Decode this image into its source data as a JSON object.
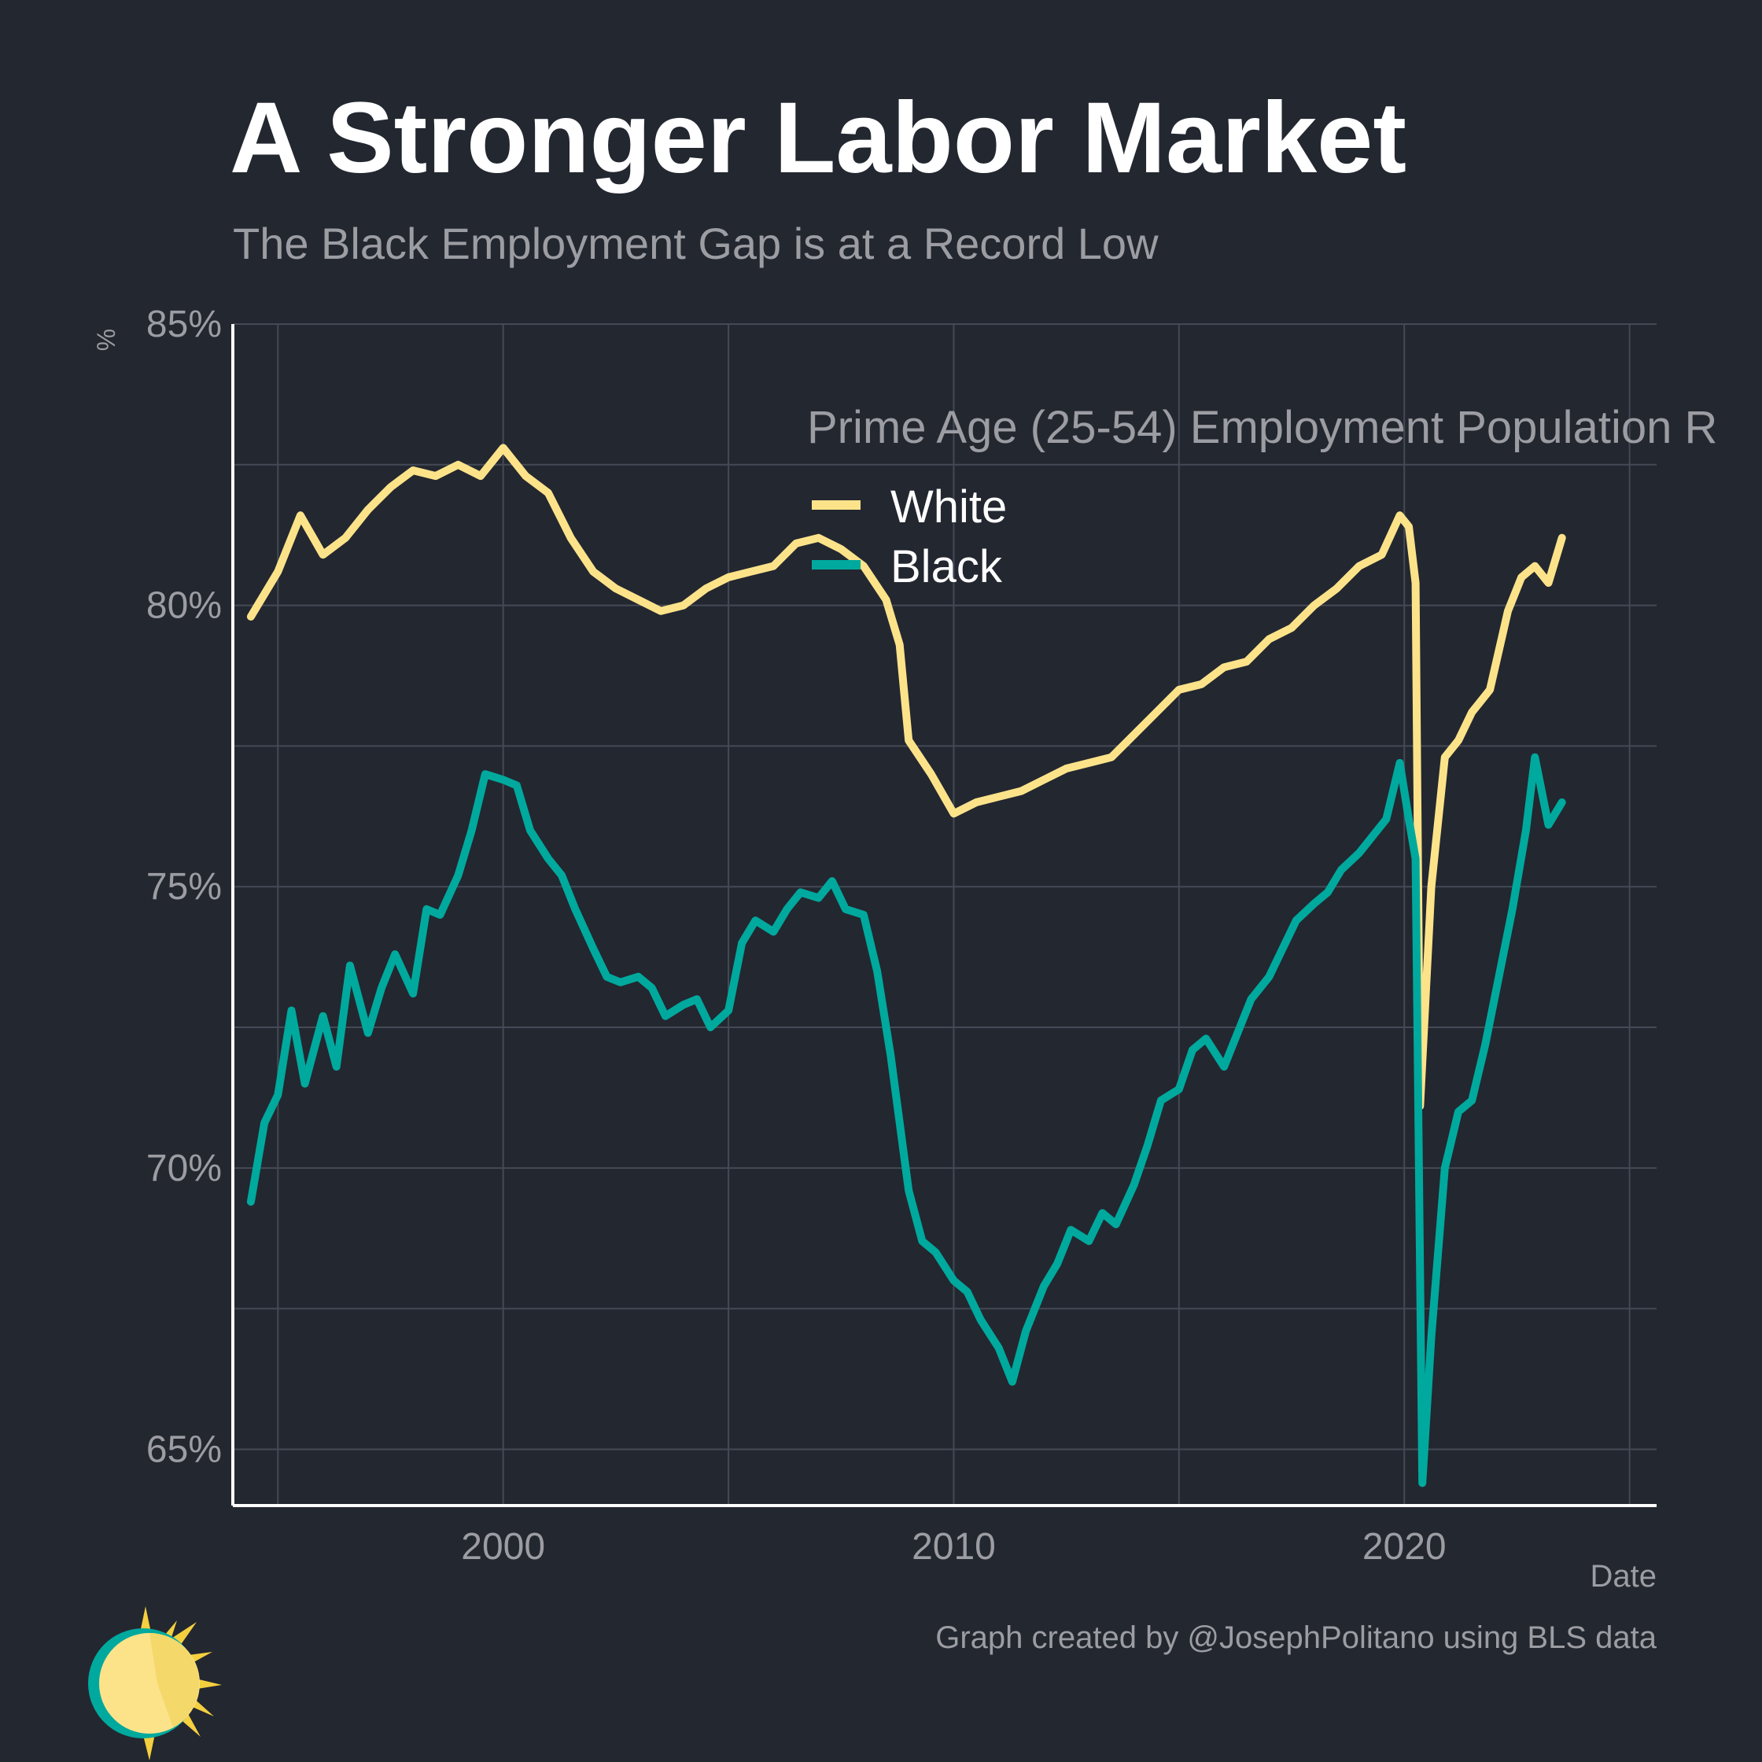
{
  "header": {
    "title": "A Stronger Labor Market",
    "subtitle": "The Black Employment Gap is at a Record Low"
  },
  "footer": {
    "caption": "Graph created by @JosephPolitano using BLS data"
  },
  "colors": {
    "background": "#232730",
    "white_series": "#fce38a",
    "black_series": "#00a99d",
    "grid": "#444a55",
    "text_muted": "#9c9da3"
  },
  "chart_data": {
    "type": "line",
    "ylabel": "%",
    "xlabel": "Date",
    "xlim": [
      1994.0,
      2025.6
    ],
    "ylim": [
      64.0,
      85.0
    ],
    "yticks": [
      65,
      70,
      75,
      80,
      85
    ],
    "ytick_labels": [
      "65%",
      "70%",
      "75%",
      "80%",
      "85%"
    ],
    "xticks": [
      2000,
      2010,
      2020
    ],
    "xtick_labels": [
      "2000",
      "2010",
      "2020"
    ],
    "grid": true,
    "legend_title": "Prime Age (25-54) Employment Population R",
    "legend_position": "top-center",
    "series": [
      {
        "name": "White",
        "color": "#fce38a",
        "points": [
          [
            1994.4,
            79.8
          ],
          [
            1995.0,
            80.6
          ],
          [
            1995.5,
            81.6
          ],
          [
            1996.0,
            80.9
          ],
          [
            1996.5,
            81.2
          ],
          [
            1997.0,
            81.7
          ],
          [
            1997.5,
            82.1
          ],
          [
            1998.0,
            82.4
          ],
          [
            1998.5,
            82.3
          ],
          [
            1999.0,
            82.5
          ],
          [
            1999.5,
            82.3
          ],
          [
            2000.0,
            82.8
          ],
          [
            2000.5,
            82.3
          ],
          [
            2001.0,
            82.0
          ],
          [
            2001.5,
            81.2
          ],
          [
            2002.0,
            80.6
          ],
          [
            2002.5,
            80.3
          ],
          [
            2003.0,
            80.1
          ],
          [
            2003.5,
            79.9
          ],
          [
            2004.0,
            80.0
          ],
          [
            2004.5,
            80.3
          ],
          [
            2005.0,
            80.5
          ],
          [
            2005.5,
            80.6
          ],
          [
            2006.0,
            80.7
          ],
          [
            2006.5,
            81.1
          ],
          [
            2007.0,
            81.2
          ],
          [
            2007.5,
            81.0
          ],
          [
            2008.0,
            80.7
          ],
          [
            2008.5,
            80.1
          ],
          [
            2008.8,
            79.3
          ],
          [
            2009.0,
            77.6
          ],
          [
            2009.5,
            77.0
          ],
          [
            2010.0,
            76.3
          ],
          [
            2010.5,
            76.5
          ],
          [
            2011.0,
            76.6
          ],
          [
            2011.5,
            76.7
          ],
          [
            2012.0,
            76.9
          ],
          [
            2012.5,
            77.1
          ],
          [
            2013.0,
            77.2
          ],
          [
            2013.5,
            77.3
          ],
          [
            2014.0,
            77.7
          ],
          [
            2014.5,
            78.1
          ],
          [
            2015.0,
            78.5
          ],
          [
            2015.5,
            78.6
          ],
          [
            2016.0,
            78.9
          ],
          [
            2016.5,
            79.0
          ],
          [
            2017.0,
            79.4
          ],
          [
            2017.5,
            79.6
          ],
          [
            2018.0,
            80.0
          ],
          [
            2018.5,
            80.3
          ],
          [
            2019.0,
            80.7
          ],
          [
            2019.5,
            80.9
          ],
          [
            2019.9,
            81.6
          ],
          [
            2020.1,
            81.4
          ],
          [
            2020.25,
            80.4
          ],
          [
            2020.35,
            71.1
          ],
          [
            2020.6,
            75.0
          ],
          [
            2020.9,
            77.3
          ],
          [
            2021.2,
            77.6
          ],
          [
            2021.5,
            78.1
          ],
          [
            2021.9,
            78.5
          ],
          [
            2022.3,
            79.9
          ],
          [
            2022.6,
            80.5
          ],
          [
            2022.9,
            80.7
          ],
          [
            2023.2,
            80.4
          ],
          [
            2023.5,
            81.2
          ]
        ]
      },
      {
        "name": "Black",
        "color": "#00a99d",
        "points": [
          [
            1994.4,
            69.4
          ],
          [
            1994.7,
            70.8
          ],
          [
            1995.0,
            71.3
          ],
          [
            1995.3,
            72.8
          ],
          [
            1995.6,
            71.5
          ],
          [
            1996.0,
            72.7
          ],
          [
            1996.3,
            71.8
          ],
          [
            1996.6,
            73.6
          ],
          [
            1997.0,
            72.4
          ],
          [
            1997.3,
            73.2
          ],
          [
            1997.6,
            73.8
          ],
          [
            1998.0,
            73.1
          ],
          [
            1998.3,
            74.6
          ],
          [
            1998.6,
            74.5
          ],
          [
            1999.0,
            75.2
          ],
          [
            1999.3,
            76.0
          ],
          [
            1999.6,
            77.0
          ],
          [
            2000.0,
            76.9
          ],
          [
            2000.3,
            76.8
          ],
          [
            2000.6,
            76.0
          ],
          [
            2001.0,
            75.5
          ],
          [
            2001.3,
            75.2
          ],
          [
            2001.6,
            74.6
          ],
          [
            2002.0,
            73.9
          ],
          [
            2002.3,
            73.4
          ],
          [
            2002.6,
            73.3
          ],
          [
            2003.0,
            73.4
          ],
          [
            2003.3,
            73.2
          ],
          [
            2003.6,
            72.7
          ],
          [
            2004.0,
            72.9
          ],
          [
            2004.3,
            73.0
          ],
          [
            2004.6,
            72.5
          ],
          [
            2005.0,
            72.8
          ],
          [
            2005.3,
            74.0
          ],
          [
            2005.6,
            74.4
          ],
          [
            2006.0,
            74.2
          ],
          [
            2006.3,
            74.6
          ],
          [
            2006.6,
            74.9
          ],
          [
            2007.0,
            74.8
          ],
          [
            2007.3,
            75.1
          ],
          [
            2007.6,
            74.6
          ],
          [
            2008.0,
            74.5
          ],
          [
            2008.3,
            73.5
          ],
          [
            2008.6,
            72.0
          ],
          [
            2009.0,
            69.6
          ],
          [
            2009.3,
            68.7
          ],
          [
            2009.6,
            68.5
          ],
          [
            2010.0,
            68.0
          ],
          [
            2010.3,
            67.8
          ],
          [
            2010.6,
            67.3
          ],
          [
            2011.0,
            66.8
          ],
          [
            2011.3,
            66.2
          ],
          [
            2011.6,
            67.1
          ],
          [
            2012.0,
            67.9
          ],
          [
            2012.3,
            68.3
          ],
          [
            2012.6,
            68.9
          ],
          [
            2013.0,
            68.7
          ],
          [
            2013.3,
            69.2
          ],
          [
            2013.6,
            69.0
          ],
          [
            2014.0,
            69.7
          ],
          [
            2014.3,
            70.4
          ],
          [
            2014.6,
            71.2
          ],
          [
            2015.0,
            71.4
          ],
          [
            2015.3,
            72.1
          ],
          [
            2015.6,
            72.3
          ],
          [
            2016.0,
            71.8
          ],
          [
            2016.3,
            72.4
          ],
          [
            2016.6,
            73.0
          ],
          [
            2017.0,
            73.4
          ],
          [
            2017.3,
            73.9
          ],
          [
            2017.6,
            74.4
          ],
          [
            2018.0,
            74.7
          ],
          [
            2018.3,
            74.9
          ],
          [
            2018.6,
            75.3
          ],
          [
            2019.0,
            75.6
          ],
          [
            2019.3,
            75.9
          ],
          [
            2019.6,
            76.2
          ],
          [
            2019.9,
            77.2
          ],
          [
            2020.1,
            76.2
          ],
          [
            2020.25,
            75.5
          ],
          [
            2020.4,
            64.4
          ],
          [
            2020.6,
            67.0
          ],
          [
            2020.9,
            70.0
          ],
          [
            2021.2,
            71.0
          ],
          [
            2021.5,
            71.2
          ],
          [
            2021.8,
            72.2
          ],
          [
            2022.1,
            73.4
          ],
          [
            2022.4,
            74.6
          ],
          [
            2022.7,
            76.0
          ],
          [
            2022.9,
            77.3
          ],
          [
            2023.2,
            76.1
          ],
          [
            2023.5,
            76.5
          ]
        ]
      }
    ]
  }
}
